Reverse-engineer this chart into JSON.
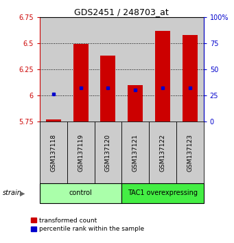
{
  "title": "GDS2451 / 248703_at",
  "samples": [
    "GSM137118",
    "GSM137119",
    "GSM137120",
    "GSM137121",
    "GSM137122",
    "GSM137123"
  ],
  "red_values": [
    5.77,
    6.49,
    6.38,
    6.1,
    6.62,
    6.58
  ],
  "blue_values": [
    6.01,
    6.07,
    6.07,
    6.05,
    6.07,
    6.07
  ],
  "red_base": 5.75,
  "ylim_left": [
    5.75,
    6.75
  ],
  "ylim_right": [
    0,
    100
  ],
  "yticks_left": [
    5.75,
    6.0,
    6.25,
    6.5,
    6.75
  ],
  "yticks_right": [
    0,
    25,
    50,
    75,
    100
  ],
  "ytick_labels_left": [
    "5.75",
    "6",
    "6.25",
    "6.5",
    "6.75"
  ],
  "ytick_labels_right": [
    "0",
    "25",
    "50",
    "75",
    "100%"
  ],
  "groups": [
    {
      "label": "control",
      "samples_idx": [
        0,
        1,
        2
      ],
      "color": "#aaffaa"
    },
    {
      "label": "TAC1 overexpressing",
      "samples_idx": [
        3,
        4,
        5
      ],
      "color": "#44ee44"
    }
  ],
  "bar_width": 0.55,
  "red_color": "#cc0000",
  "blue_color": "#0000cc",
  "bar_bg_color": "#cccccc",
  "legend_red": "transformed count",
  "legend_blue": "percentile rank within the sample"
}
